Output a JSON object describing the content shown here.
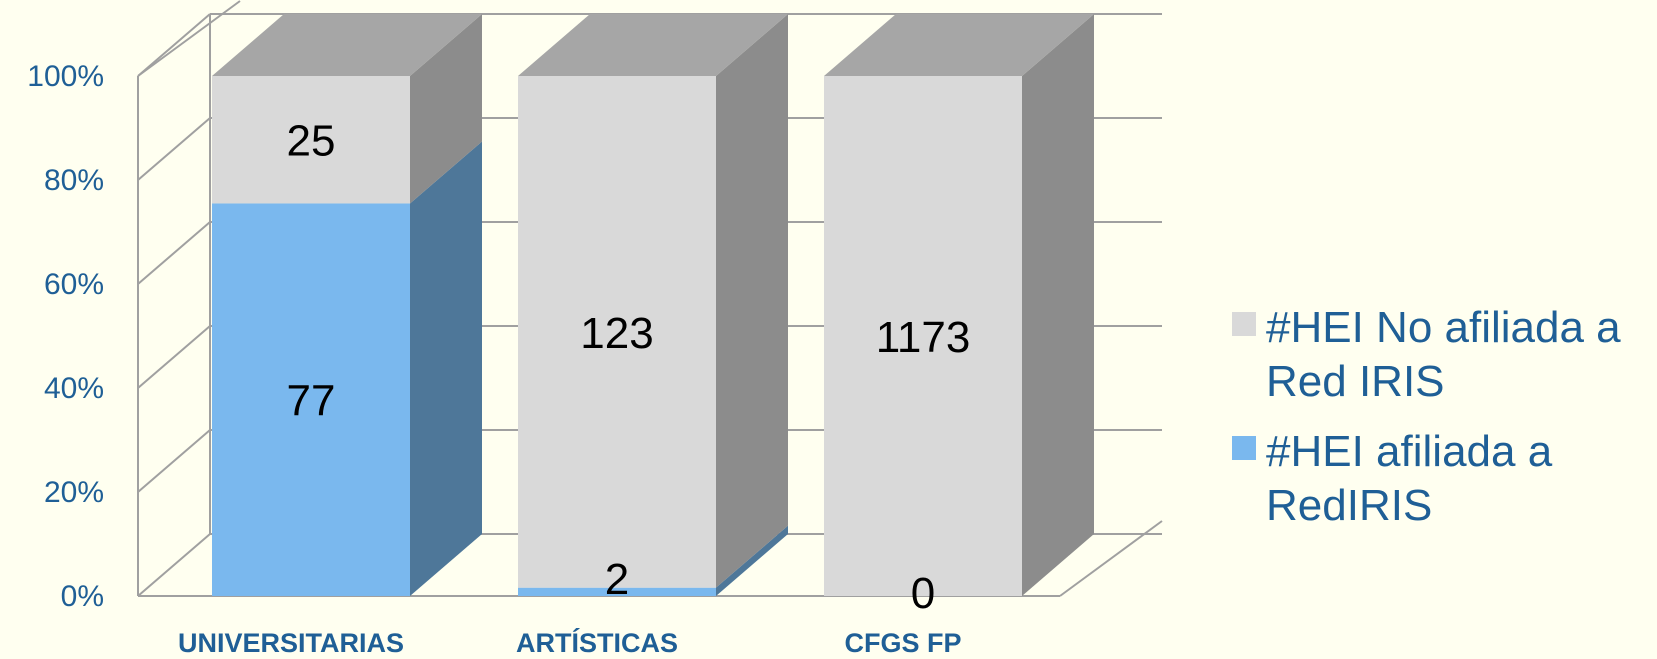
{
  "chart_data": {
    "type": "bar",
    "stacked": "percent",
    "style": "3d",
    "categories": [
      "UNIVERSITARIAS",
      "ARTÍSTICAS",
      "CFGS FP"
    ],
    "series": [
      {
        "name": "#HEI afiliada a RedIRIS",
        "values": [
          77,
          2,
          0
        ],
        "color": "#7ab8ee",
        "side_color": "#4e7799"
      },
      {
        "name": "#HEI No afiliada a Red IRIS",
        "values": [
          25,
          123,
          1173
        ],
        "color": "#d9d9d9",
        "side_color": "#8c8c8c"
      }
    ],
    "yticks": [
      "0%",
      "20%",
      "40%",
      "60%",
      "80%",
      "100%"
    ],
    "ylim": [
      0,
      100
    ],
    "grid": true,
    "legend": "right",
    "legend_entries": [
      {
        "lines": [
          "#HEI No afiliada a",
          "Red IRIS"
        ],
        "color": "#d9d9d9"
      },
      {
        "lines": [
          "#HEI afiliada a",
          "RedIRIS"
        ],
        "color": "#7ab8ee"
      }
    ]
  }
}
